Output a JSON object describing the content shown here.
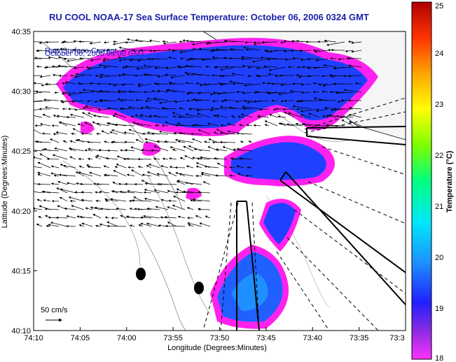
{
  "title": "RU COOL  NOAA-17  Sea Surface Temperature:  October 06, 2006 0324 GMT",
  "overlay": {
    "line1": "Raw Surface Current",
    "line2": "October 06, 2006 04:00 GMT"
  },
  "scale": {
    "label": "50 cm/s"
  },
  "axes": {
    "xlabel": "Longitude (Degrees:Minutes)",
    "ylabel": "Latitude (Degrees:Minutes)",
    "xticks": [
      "74:10",
      "74:05",
      "74:00",
      "73:55",
      "73:50",
      "73:45",
      "73:40",
      "73:35",
      "73:3"
    ],
    "yticks": [
      "40:35",
      "40:30",
      "40:25",
      "40:20",
      "40:15",
      "40:10"
    ]
  },
  "colorbar": {
    "label": "Temperature (°C)",
    "ticks": [
      "25",
      "24",
      "23",
      "22",
      "21",
      "20",
      "19",
      "18"
    ],
    "range": [
      18,
      25
    ],
    "colors": [
      "#ff33ff",
      "#8a2be2",
      "#2020ff",
      "#1e90ff",
      "#00e5ff",
      "#00ff7f",
      "#7fff00",
      "#ffff00",
      "#ffa500",
      "#ff3300",
      "#b00000"
    ]
  }
}
